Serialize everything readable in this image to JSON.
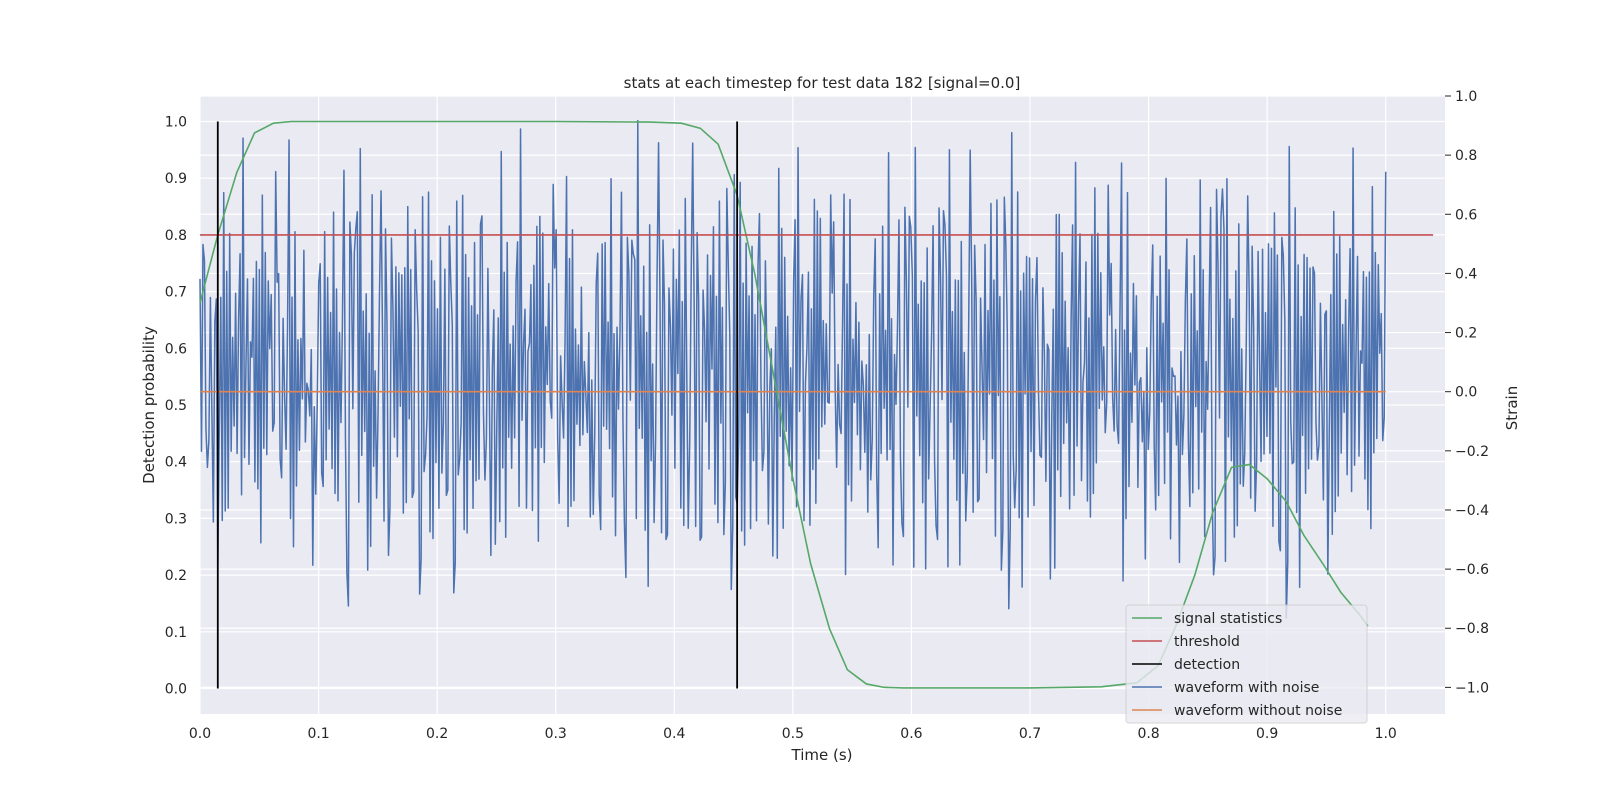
{
  "chart_data": {
    "type": "line",
    "title": "stats at each timestep for test data 182 [signal=0.0]",
    "xlabel": "Time (s)",
    "ylabel_left": "Detection probability",
    "ylabel_right": "Strain",
    "xlim": [
      0.0,
      1.05
    ],
    "ylim_left": [
      -0.045,
      1.045
    ],
    "ylim_right": [
      -1.09,
      1.0
    ],
    "x_ticks": [
      "0.0",
      "0.1",
      "0.2",
      "0.3",
      "0.4",
      "0.5",
      "0.6",
      "0.7",
      "0.8",
      "0.9",
      "1.0"
    ],
    "y_left_ticks": [
      "0.0",
      "0.1",
      "0.2",
      "0.3",
      "0.4",
      "0.5",
      "0.6",
      "0.7",
      "0.8",
      "0.9",
      "1.0"
    ],
    "y_right_ticks": [
      "−1.0",
      "−0.8",
      "−0.6",
      "−0.4",
      "−0.2",
      "0.0",
      "0.2",
      "0.4",
      "0.6",
      "0.8",
      "1.0"
    ],
    "grid": true,
    "legend_position": "lower-right",
    "colors": {
      "background": "#eaeaf2",
      "signal_statistics": "#55a868",
      "threshold": "#c44e52",
      "detection": "#000000",
      "waveform_with_noise": "#4c72b0",
      "waveform_without_noise": "#dd8452"
    },
    "series": [
      {
        "name": "signal statistics",
        "axis": "left",
        "x": [
          0.0,
          0.015,
          0.031,
          0.046,
          0.062,
          0.077,
          0.092,
          0.108,
          0.123,
          0.2,
          0.3,
          0.38,
          0.406,
          0.422,
          0.437,
          0.453,
          0.468,
          0.484,
          0.5,
          0.515,
          0.531,
          0.546,
          0.562,
          0.577,
          0.593,
          0.62,
          0.7,
          0.76,
          0.79,
          0.808,
          0.823,
          0.839,
          0.854,
          0.87,
          0.885,
          0.9,
          0.916,
          0.931,
          0.947,
          0.962,
          0.978,
          0.985
        ],
        "y": [
          0.68,
          0.8,
          0.91,
          0.98,
          0.997,
          1.0,
          1.0,
          1.0,
          1.0,
          1.0,
          1.0,
          0.999,
          0.997,
          0.988,
          0.96,
          0.87,
          0.73,
          0.55,
          0.37,
          0.22,
          0.105,
          0.033,
          0.008,
          0.002,
          0.001,
          0.001,
          0.001,
          0.003,
          0.01,
          0.04,
          0.11,
          0.2,
          0.31,
          0.39,
          0.395,
          0.37,
          0.33,
          0.27,
          0.22,
          0.17,
          0.13,
          0.11
        ]
      },
      {
        "name": "threshold",
        "axis": "left",
        "x": [
          0.0,
          1.04
        ],
        "y": [
          0.8,
          0.8
        ]
      },
      {
        "name": "detection",
        "axis": "left",
        "x": [
          0.015,
          0.453
        ],
        "y_range": [
          0.0,
          1.0
        ]
      },
      {
        "name": "waveform with noise",
        "axis": "right",
        "x_range": [
          0.0,
          1.0
        ],
        "n_points": 800,
        "sample_values": [
          0.39,
          0.02,
          0.18,
          -0.06,
          0.24,
          -0.27,
          0.12,
          -0.38,
          0.31,
          -0.09,
          0.45,
          -0.32,
          0.07,
          -0.45,
          0.52,
          -0.11,
          0.28,
          -0.56,
          0.35,
          0.02,
          -0.2,
          0.6,
          -0.08,
          0.78,
          -0.49,
          0.62,
          -0.17,
          0.33,
          -0.05,
          0.83,
          -0.24,
          0.7,
          -0.43,
          0.12,
          0.87,
          -0.3,
          0.4,
          -0.64,
          0.51,
          0.98,
          -0.6,
          0.35,
          -0.22,
          0.56,
          -0.71,
          0.26,
          -0.18,
          0.09,
          -0.48,
          0.44,
          -0.12,
          0.72,
          -0.84,
          0.25,
          -0.36,
          0.61,
          0.05,
          -0.3,
          0.5,
          -0.62,
          0.48,
          -0.11,
          0.3,
          -0.5,
          0.21,
          -0.07,
          0.9,
          -0.39,
          0.4,
          -0.55,
          0.16,
          -0.08,
          0.63,
          -0.27,
          0.11,
          0.56,
          -0.43,
          0.26,
          -0.2,
          0.67,
          -0.35,
          0.15,
          -0.31,
          0.5,
          -0.68,
          0.28,
          0.6,
          -0.22,
          0.47,
          -0.49,
          0.2,
          -0.12,
          0.9,
          -0.58,
          0.78,
          -0.44,
          0.5,
          -0.2,
          0.32,
          -0.63,
          0.95,
          -0.52,
          0.41,
          -0.28,
          0.55,
          -0.6,
          0.38,
          -0.18,
          0.48,
          -0.37,
          0.55,
          -0.27,
          0.82,
          -0.5,
          0.34,
          -0.68,
          0.62,
          -0.1,
          0.4,
          -0.33,
          0.71,
          -0.21,
          0.44,
          -0.51,
          0.28,
          -0.05,
          0.58,
          -0.4,
          0.4,
          -0.15,
          0.76,
          -0.3,
          0.6,
          -0.49,
          0.2,
          -0.58,
          0.45,
          -0.25,
          0.83,
          -0.36,
          0.58,
          -0.14,
          0.35,
          -0.47,
          0.62,
          -0.3,
          0.48,
          -0.2,
          0.3,
          -0.64,
          0.56,
          -0.18,
          0.37,
          -0.52,
          0.27,
          -0.08,
          0.68,
          -0.3,
          0.38,
          -0.56,
          0.73,
          -0.2,
          0.42,
          -0.33
        ]
      },
      {
        "name": "waveform without noise",
        "axis": "right",
        "x": [
          0.0,
          1.0
        ],
        "y": [
          0.0,
          0.0
        ]
      }
    ]
  }
}
